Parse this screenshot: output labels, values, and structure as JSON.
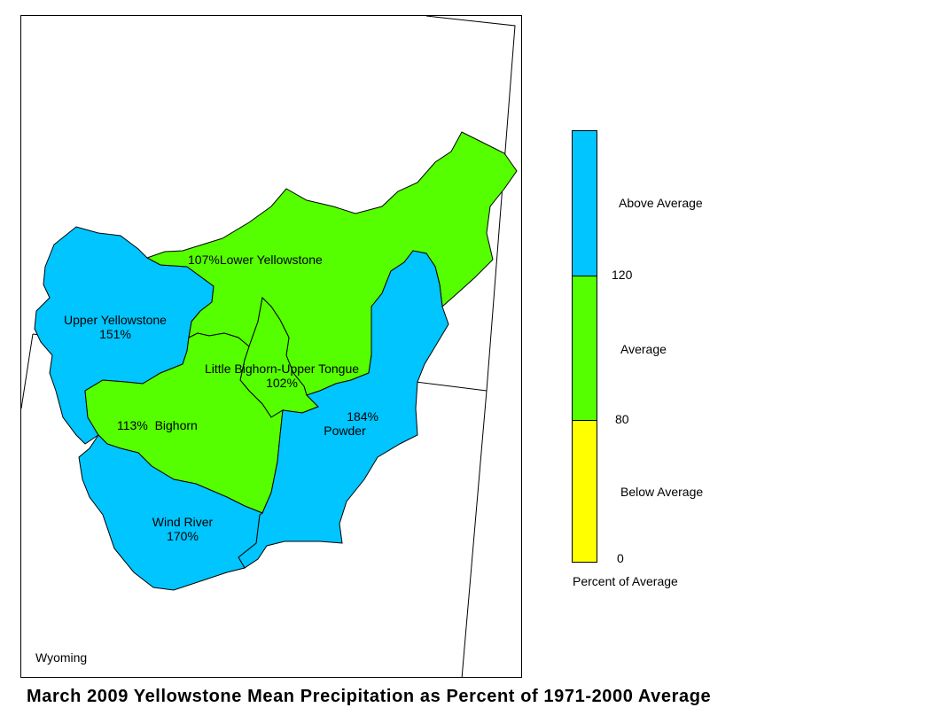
{
  "title": "March 2009 Yellowstone Mean Precipitation as Percent of 1971-2000 Average",
  "map": {
    "state_label": "Wyoming",
    "basins": [
      {
        "name": "Upper Yellowstone",
        "percent": "151%",
        "category": "Above Average"
      },
      {
        "name": "Lower Yellowstone",
        "percent": "107%",
        "category": "Average"
      },
      {
        "name": "Little Bighorn-Upper Tongue",
        "percent": "102%",
        "category": "Average"
      },
      {
        "name": "Bighorn",
        "percent": "113%",
        "category": "Average"
      },
      {
        "name": "Powder",
        "percent": "184%",
        "category": "Above Average"
      },
      {
        "name": "Wind River",
        "percent": "170%",
        "category": "Above Average"
      }
    ]
  },
  "legend": {
    "title": "Percent of Average",
    "classes": [
      {
        "label": "Above Average",
        "color": "#00c5ff"
      },
      {
        "label": "Average",
        "color": "#55ff00"
      },
      {
        "label": "Below Average",
        "color": "#ffff00"
      }
    ],
    "breaks": [
      "120",
      "80",
      "0"
    ]
  },
  "colors": {
    "above": "#00c5ff",
    "average": "#55ff00",
    "below": "#ffff00",
    "outline": "#000000"
  }
}
